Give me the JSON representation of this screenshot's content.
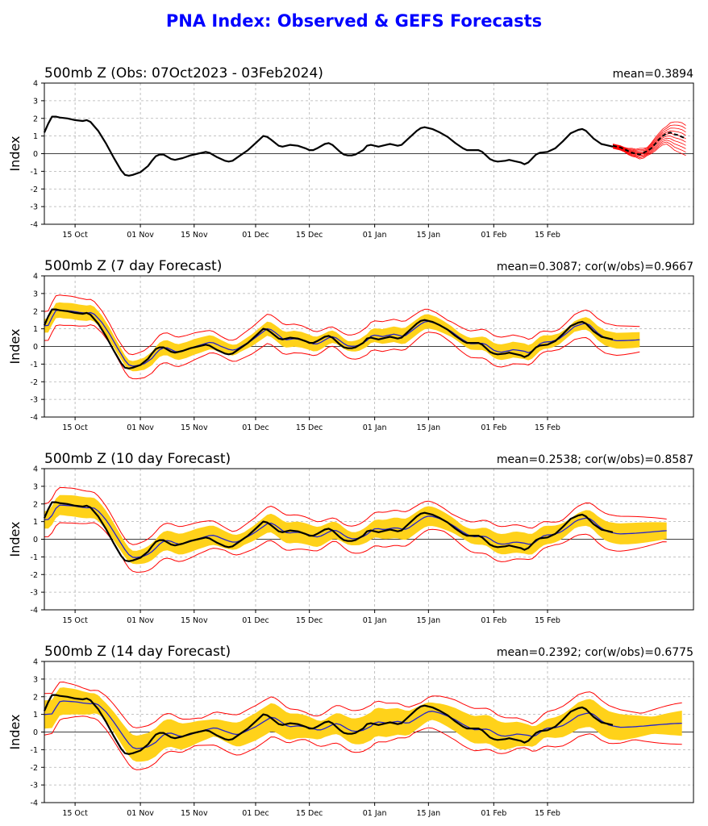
{
  "page_title": "PNA Index: Observed & GEFS Forecasts",
  "colors": {
    "title": "#0000ff",
    "observed": "#000000",
    "mean": "#2222cc",
    "member": "#ff0000",
    "spread": "#ffd21a",
    "grid": "#b0b0b0"
  },
  "chart_data": [
    {
      "type": "line",
      "title": "500mb Z (Obs: 07Oct2023 - 03Feb2024)",
      "stats": "mean=0.3894",
      "ylabel": "Index",
      "ylim": [
        -4,
        4
      ],
      "yticks": [
        -4,
        -3,
        -2,
        -1,
        0,
        1,
        2,
        3,
        4
      ],
      "xticks": [
        "15 Oct",
        "01 Nov",
        "15 Nov",
        "01 Dec",
        "15 Dec",
        "01 Jan",
        "15 Jan",
        "01 Feb",
        "15 Feb"
      ],
      "series": [
        {
          "name": "observed",
          "color": "#000000",
          "values": [
            [
              0,
              1.2
            ],
            [
              1,
              1.7
            ],
            [
              2,
              2.1
            ],
            [
              3,
              2.1
            ],
            [
              4,
              2.05
            ],
            [
              6,
              2.0
            ],
            [
              8,
              1.9
            ],
            [
              10,
              1.85
            ],
            [
              11,
              1.9
            ],
            [
              12,
              1.8
            ],
            [
              14,
              1.3
            ],
            [
              16,
              0.6
            ],
            [
              18,
              -0.2
            ],
            [
              20,
              -0.95
            ],
            [
              21,
              -1.2
            ],
            [
              22,
              -1.25
            ],
            [
              23,
              -1.2
            ],
            [
              25,
              -1.05
            ],
            [
              27,
              -0.7
            ],
            [
              28,
              -0.4
            ],
            [
              29,
              -0.15
            ],
            [
              30,
              -0.05
            ],
            [
              31,
              -0.05
            ],
            [
              33,
              -0.3
            ],
            [
              34,
              -0.35
            ],
            [
              36,
              -0.25
            ],
            [
              38,
              -0.1
            ],
            [
              40,
              0.0
            ],
            [
              41,
              0.05
            ],
            [
              42,
              0.1
            ],
            [
              43,
              0.05
            ],
            [
              45,
              -0.2
            ],
            [
              47,
              -0.4
            ],
            [
              48,
              -0.45
            ],
            [
              49,
              -0.4
            ],
            [
              51,
              -0.1
            ],
            [
              53,
              0.2
            ],
            [
              55,
              0.6
            ],
            [
              57,
              1.0
            ],
            [
              58,
              0.95
            ],
            [
              59,
              0.8
            ],
            [
              61,
              0.45
            ],
            [
              62,
              0.4
            ],
            [
              64,
              0.5
            ],
            [
              66,
              0.45
            ],
            [
              68,
              0.3
            ],
            [
              69,
              0.2
            ],
            [
              70,
              0.2
            ],
            [
              71,
              0.3
            ],
            [
              73,
              0.55
            ],
            [
              74,
              0.6
            ],
            [
              75,
              0.5
            ],
            [
              77,
              0.1
            ],
            [
              78,
              -0.05
            ],
            [
              79,
              -0.1
            ],
            [
              80,
              -0.1
            ],
            [
              81,
              -0.05
            ],
            [
              83,
              0.2
            ],
            [
              84,
              0.45
            ],
            [
              85,
              0.5
            ],
            [
              86,
              0.45
            ],
            [
              87,
              0.4
            ],
            [
              89,
              0.5
            ],
            [
              90,
              0.55
            ],
            [
              91,
              0.5
            ],
            [
              92,
              0.45
            ],
            [
              93,
              0.5
            ],
            [
              95,
              0.9
            ],
            [
              97,
              1.3
            ],
            [
              98,
              1.45
            ],
            [
              99,
              1.5
            ],
            [
              101,
              1.4
            ],
            [
              103,
              1.2
            ],
            [
              105,
              0.95
            ],
            [
              107,
              0.6
            ],
            [
              109,
              0.3
            ],
            [
              110,
              0.2
            ],
            [
              111,
              0.2
            ],
            [
              112,
              0.2
            ],
            [
              113,
              0.2
            ],
            [
              114,
              0.1
            ],
            [
              115,
              -0.1
            ],
            [
              116,
              -0.3
            ],
            [
              117,
              -0.4
            ],
            [
              118,
              -0.45
            ],
            [
              120,
              -0.4
            ],
            [
              121,
              -0.35
            ],
            [
              122,
              -0.4
            ],
            [
              124,
              -0.5
            ],
            [
              125,
              -0.6
            ],
            [
              126,
              -0.5
            ],
            [
              128,
              -0.05
            ],
            [
              129,
              0.05
            ],
            [
              131,
              0.1
            ],
            [
              133,
              0.3
            ],
            [
              135,
              0.7
            ],
            [
              137,
              1.15
            ],
            [
              139,
              1.35
            ],
            [
              140,
              1.4
            ],
            [
              141,
              1.3
            ],
            [
              143,
              0.85
            ],
            [
              145,
              0.55
            ],
            [
              146,
              0.5
            ],
            [
              148,
              0.4
            ]
          ]
        }
      ],
      "members": {
        "color": "#ff0000",
        "x_start": 148,
        "x_end": 167,
        "low": [
          0.3,
          0.25,
          0.2,
          0.1,
          -0.05,
          -0.15,
          -0.2,
          -0.3,
          -0.25,
          -0.1,
          0.0,
          0.15,
          0.35,
          0.5,
          0.55,
          0.4,
          0.2,
          0.1,
          0.0,
          -0.1
        ],
        "high": [
          0.55,
          0.5,
          0.45,
          0.35,
          0.3,
          0.3,
          0.25,
          0.3,
          0.3,
          0.35,
          0.6,
          0.9,
          1.15,
          1.4,
          1.55,
          1.75,
          1.8,
          1.8,
          1.75,
          1.6
        ],
        "mean": [
          0.45,
          0.4,
          0.35,
          0.25,
          0.15,
          0.05,
          0.0,
          -0.05,
          0.05,
          0.15,
          0.3,
          0.55,
          0.8,
          1.0,
          1.15,
          1.2,
          1.1,
          1.05,
          0.95,
          0.85
        ]
      },
      "grid": true
    },
    {
      "type": "line",
      "title": "500mb Z (7 day Forecast)",
      "stats": "mean=0.3087; cor(w/obs)=0.9667",
      "ylabel": "Index",
      "ylim": [
        -4,
        4
      ],
      "yticks": [
        -4,
        -3,
        -2,
        -1,
        0,
        1,
        2,
        3,
        4
      ],
      "xticks": [
        "15 Oct",
        "01 Nov",
        "15 Nov",
        "01 Dec",
        "15 Dec",
        "01 Jan",
        "15 Jan",
        "01 Feb",
        "15 Feb"
      ],
      "forecast": {
        "lead_days": 7,
        "spread_width": 0.45,
        "member_width": 0.85,
        "mean_bias": 0.15,
        "x_end": 155
      },
      "grid": true
    },
    {
      "type": "line",
      "title": "500mb Z (10 day Forecast)",
      "stats": "mean=0.2538; cor(w/obs)=0.8587",
      "ylabel": "Index",
      "ylim": [
        -4,
        4
      ],
      "yticks": [
        -4,
        -3,
        -2,
        -1,
        0,
        1,
        2,
        3,
        4
      ],
      "xticks": [
        "15 Oct",
        "01 Nov",
        "15 Nov",
        "01 Dec",
        "15 Dec",
        "01 Jan",
        "15 Jan",
        "01 Feb",
        "15 Feb"
      ],
      "forecast": {
        "lead_days": 10,
        "spread_width": 0.6,
        "member_width": 1.0,
        "mean_bias": 0.25,
        "x_end": 162
      },
      "grid": true
    },
    {
      "type": "line",
      "title": "500mb Z (14 day Forecast)",
      "stats": "mean=0.2392; cor(w/obs)=0.6775",
      "ylabel": "Index",
      "ylim": [
        -4,
        4
      ],
      "yticks": [
        -4,
        -3,
        -2,
        -1,
        0,
        1,
        2,
        3,
        4
      ],
      "xticks": [
        "15 Oct",
        "01 Nov",
        "15 Nov",
        "01 Dec",
        "15 Dec",
        "01 Jan",
        "15 Jan",
        "01 Feb",
        "15 Feb"
      ],
      "forecast": {
        "lead_days": 14,
        "spread_width": 0.8,
        "member_width": 1.2,
        "mean_bias": 0.4,
        "x_end": 166
      },
      "grid": true
    }
  ]
}
